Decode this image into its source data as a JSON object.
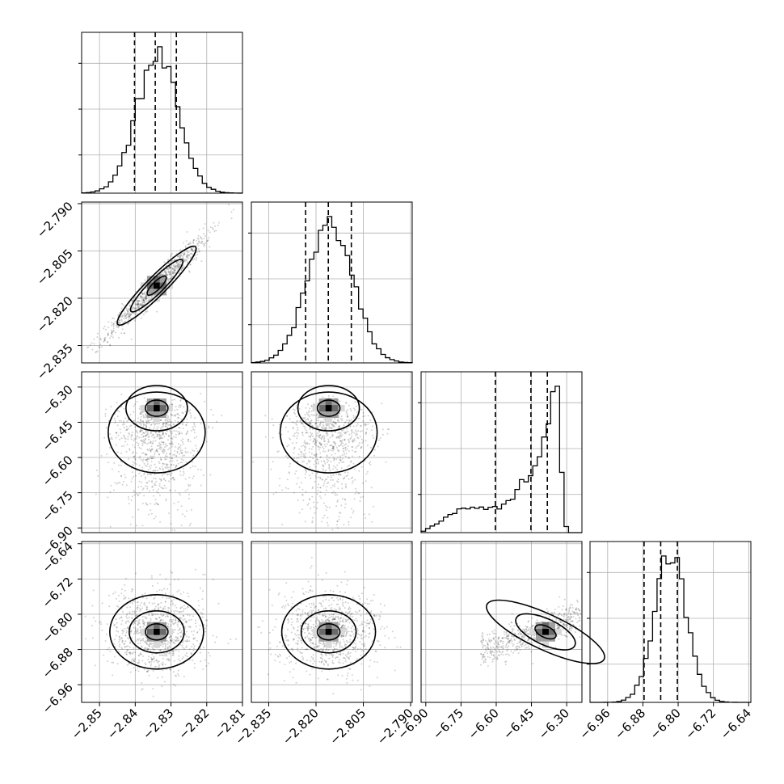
{
  "chart_data": {
    "type": "corner",
    "grid": true,
    "parameters": [
      {
        "range": [
          -2.855,
          -2.81
        ],
        "ticks": [
          -2.85,
          -2.84,
          -2.83,
          -2.82,
          -2.81
        ],
        "tick_labels": [
          "−2.85",
          "−2.84",
          "−2.83",
          "−2.82",
          "−2.81"
        ],
        "quantiles": [
          -2.8402,
          -2.8344,
          -2.8285
        ],
        "hist_peak": -2.834,
        "hist_width": 0.0045
      },
      {
        "range": [
          -2.8405,
          -2.7895
        ],
        "ticks": [
          -2.835,
          -2.82,
          -2.805,
          -2.79
        ],
        "tick_labels": [
          "−2.835",
          "−2.820",
          "−2.805",
          "−2.790"
        ],
        "quantiles": [
          -2.8233,
          -2.8161,
          -2.8088
        ],
        "hist_peak": -2.816,
        "hist_width": 0.0055
      },
      {
        "range": [
          -6.92,
          -6.235
        ],
        "ticks": [
          -6.9,
          -6.75,
          -6.6,
          -6.45,
          -6.3
        ],
        "tick_labels": [
          "−6.90",
          "−6.75",
          "−6.60",
          "−6.45",
          "−6.30"
        ],
        "quantiles": [
          -6.6038,
          -6.4523,
          -6.3823
        ],
        "hist_peak": -6.36,
        "hist_width": 0.06
      },
      {
        "range": [
          -7.0,
          -6.635
        ],
        "ticks": [
          -6.96,
          -6.88,
          -6.8,
          -6.72,
          -6.64
        ],
        "tick_labels": [
          "−6.96",
          "−6.88",
          "−6.80",
          "−6.72",
          "−6.64"
        ],
        "quantiles": [
          -6.8773,
          -6.8396,
          -6.8018
        ],
        "hist_peak": -6.84,
        "hist_width": 0.028
      }
    ],
    "pair_modes": [
      {
        "row": 1,
        "col": 0,
        "mode": [
          -2.834,
          -2.816
        ]
      },
      {
        "row": 2,
        "col": 0,
        "mode": [
          -2.834,
          -6.39
        ]
      },
      {
        "row": 2,
        "col": 1,
        "mode": [
          -2.816,
          -6.39
        ]
      },
      {
        "row": 2,
        "col": 2,
        "mode": [
          -6.39,
          -6.39
        ]
      },
      {
        "row": 3,
        "col": 0,
        "mode": [
          -2.834,
          -6.84
        ]
      },
      {
        "row": 3,
        "col": 1,
        "mode": [
          -2.816,
          -6.84
        ]
      },
      {
        "row": 3,
        "col": 2,
        "mode": [
          -6.39,
          -6.84
        ]
      }
    ]
  }
}
